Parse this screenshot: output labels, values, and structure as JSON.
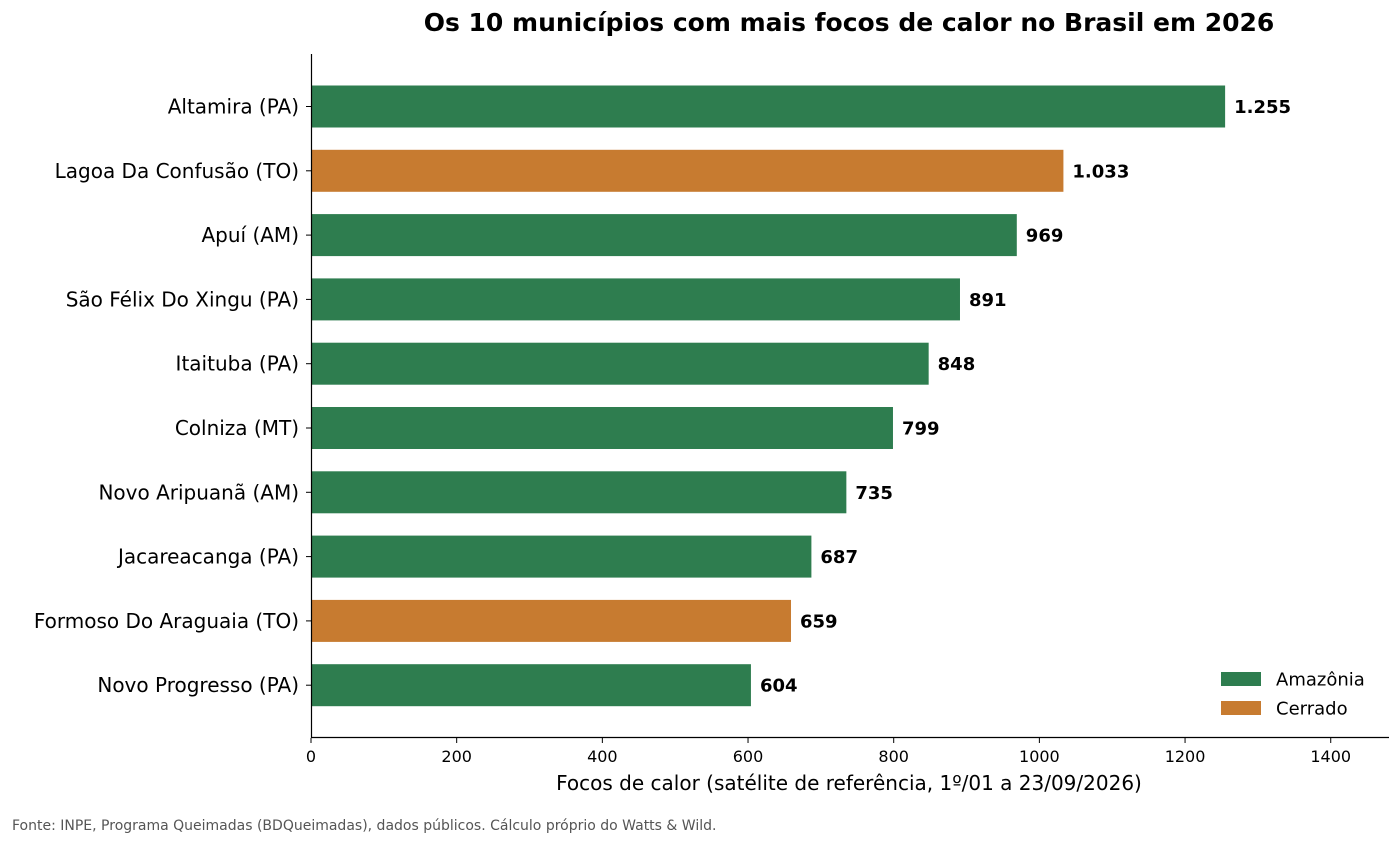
{
  "chart_data": {
    "type": "bar",
    "orientation": "horizontal",
    "title": "Os 10 municípios com mais focos de calor no Brasil em 2026",
    "xlabel": "Focos de calor (satélite de referência, 1º/01 a 23/09/2026)",
    "ylabel": "",
    "xlim": [
      0,
      1480
    ],
    "xticks": [
      0,
      200,
      400,
      600,
      800,
      1000,
      1200,
      1400
    ],
    "grid": false,
    "legend_position": "bottom-right",
    "categories": [
      "Altamira (PA)",
      "Lagoa Da Confusão (TO)",
      "Apuí (AM)",
      "São Félix Do Xingu (PA)",
      "Itaituba (PA)",
      "Colniza (MT)",
      "Novo Aripuanã (AM)",
      "Jacareacanga (PA)",
      "Formoso Do Araguaia (TO)",
      "Novo Progresso (PA)"
    ],
    "values": [
      1255,
      1033,
      969,
      891,
      848,
      799,
      735,
      687,
      659,
      604
    ],
    "value_labels": [
      "1.255",
      "1.033",
      "969",
      "891",
      "848",
      "799",
      "735",
      "687",
      "659",
      "604"
    ],
    "biomes": [
      "Amazônia",
      "Cerrado",
      "Amazônia",
      "Amazônia",
      "Amazônia",
      "Amazônia",
      "Amazônia",
      "Amazônia",
      "Cerrado",
      "Amazônia"
    ],
    "legend": [
      {
        "name": "Amazônia",
        "color": "#2e7d4f"
      },
      {
        "name": "Cerrado",
        "color": "#c77b30"
      }
    ],
    "source_note": "Fonte: INPE, Programa Queimadas (BDQueimadas), dados públicos. Cálculo próprio do Watts & Wild."
  }
}
